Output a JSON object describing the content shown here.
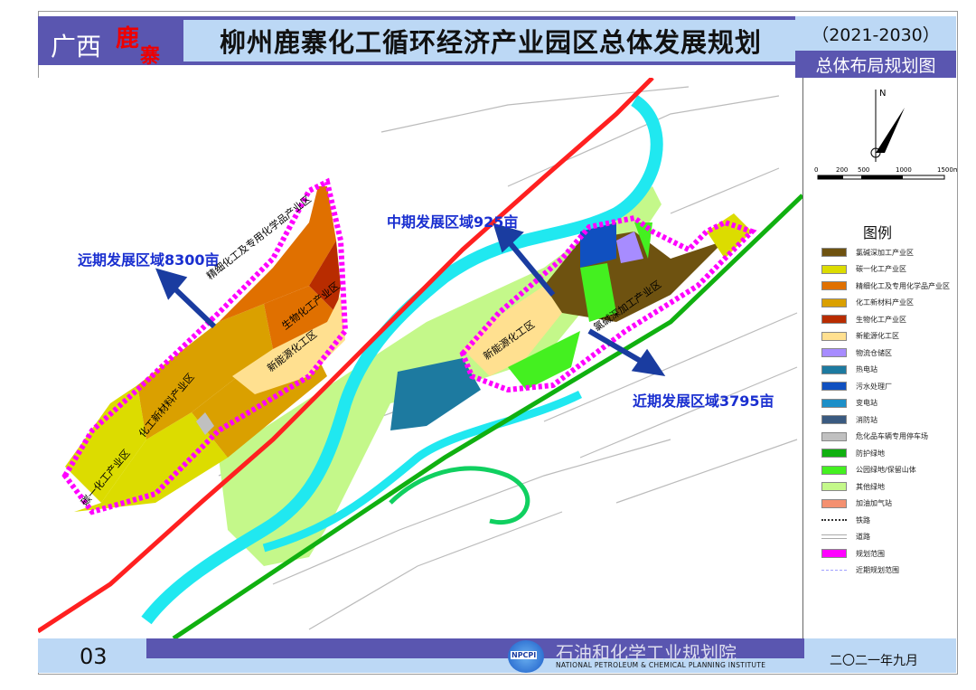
{
  "header": {
    "region": "广西",
    "lu": "鹿",
    "zhai": "寨",
    "title": "柳州鹿寨化工循环经济产业园区总体发展规划",
    "years": "（2021-2030）",
    "subtitle": "总体布局规划图"
  },
  "map": {
    "annotations": {
      "far": "远期发展区域8300亩",
      "mid": "中期发展区域925亩",
      "near": "近期发展区域3795亩"
    },
    "zone_labels": {
      "fine": "精细化工及专用化学品产业区",
      "bio": "生物化工产业区",
      "newenergy_w": "新能源化工区",
      "material": "化工新材料产业区",
      "c1": "碳一化工产业区",
      "newenergy_e": "新能源化工区",
      "chloralkali": "氯碱深加工产业区"
    },
    "compass": {
      "north": "N"
    },
    "scale": {
      "ticks": [
        "0",
        "200",
        "500",
        "1000",
        "1500m"
      ]
    }
  },
  "legend": {
    "title": "图例",
    "items": [
      {
        "label": "氯碱深加工产业区",
        "color": "#6e5210"
      },
      {
        "label": "碳一化工产业区",
        "color": "#dcdc00"
      },
      {
        "label": "精细化工及专用化学品产业区",
        "color": "#e07000"
      },
      {
        "label": "化工新材料产业区",
        "color": "#daa000"
      },
      {
        "label": "生物化工产业区",
        "color": "#b82c00"
      },
      {
        "label": "新能源化工区",
        "color": "#ffe090"
      },
      {
        "label": "物流仓储区",
        "color": "#a78cff"
      },
      {
        "label": "热电站",
        "color": "#1d7aa0"
      },
      {
        "label": "污水处理厂",
        "color": "#1050c0"
      },
      {
        "label": "变电站",
        "color": "#1c8fc8"
      },
      {
        "label": "消防站",
        "color": "#3a5a80"
      },
      {
        "label": "危化品车辆专用停车场",
        "color": "#c0c0c0"
      },
      {
        "label": "防护绿地",
        "color": "#10b010"
      },
      {
        "label": "公园绿地/保留山体",
        "color": "#44f020"
      },
      {
        "label": "其他绿地",
        "color": "#c4f88a"
      },
      {
        "label": "加油加气站",
        "color": "#f49070"
      },
      {
        "label": "铁路",
        "color": "#333333"
      },
      {
        "label": "道路",
        "color": "#aaaaaa"
      },
      {
        "label": "规划范围",
        "color": "#ff00ff"
      },
      {
        "label": "近期规划范围",
        "color": "#a0a0ff"
      }
    ]
  },
  "footer": {
    "page": "03",
    "org": "石油和化学工业规划院",
    "org_en": "NATIONAL PETROLEUM & CHEMICAL PLANNING INSTITUTE",
    "logo": "NPCPI",
    "date": "二〇二一年九月"
  }
}
